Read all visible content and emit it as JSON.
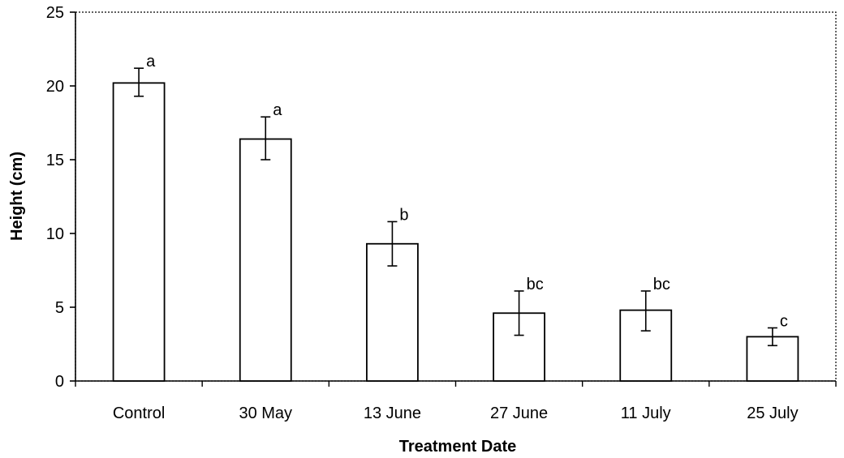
{
  "chart_data": {
    "type": "bar",
    "title": "",
    "xlabel": "Treatment Date",
    "ylabel": "Height (cm)",
    "ylim": [
      0,
      25
    ],
    "yticks": [
      0,
      5,
      10,
      15,
      20,
      25
    ],
    "ytick_labels": [
      "0",
      "5",
      "10",
      "15",
      "20",
      "25"
    ],
    "grid": false,
    "legend": "none",
    "categories": [
      "Control",
      "30 May",
      "13 June",
      "27 June",
      "11 July",
      "25 July"
    ],
    "values": [
      20.2,
      16.4,
      9.3,
      4.6,
      4.8,
      3.0
    ],
    "error_low": [
      19.3,
      15.0,
      7.8,
      3.1,
      3.4,
      2.4
    ],
    "error_high": [
      21.2,
      17.9,
      10.8,
      6.1,
      6.1,
      3.6
    ],
    "significance_labels": [
      "a",
      "a",
      "b",
      "bc",
      "bc",
      "c"
    ],
    "bar_fill": "#ffffff",
    "bar_stroke": "#000000"
  }
}
